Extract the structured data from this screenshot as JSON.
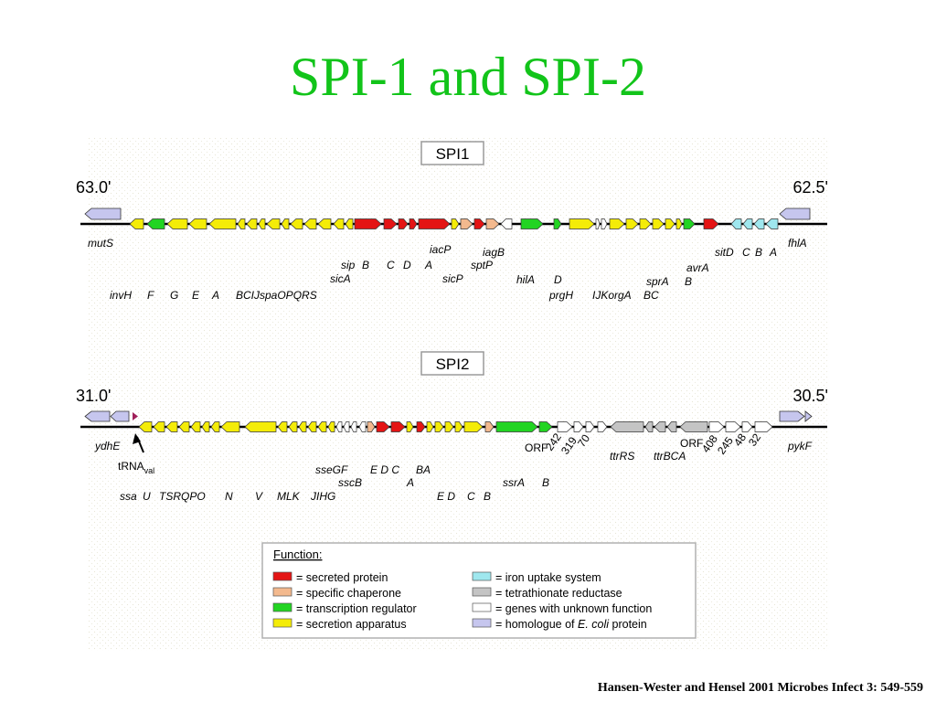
{
  "title": "SPI-1 and SPI-2",
  "citation": "Hansen-Wester and Hensel 2001 Microbes Infect 3: 549-559",
  "colors": {
    "red": "#e41414",
    "peach": "#f3b98e",
    "green": "#22d422",
    "yellow": "#f4ec08",
    "cyan": "#9fe7ee",
    "gray": "#c4c4c4",
    "white": "#ffffff",
    "lilac": "#c6c6ee"
  },
  "spi1": {
    "label": "SPI1",
    "left_pos": "63.0'",
    "right_pos": "62.5'",
    "left_gene": "mutS",
    "right_gene": "fhlA",
    "labels": {
      "inv_row": [
        "invH",
        "F",
        "G",
        "E",
        "A",
        "BCIJspaOPQRS"
      ],
      "sip_row": [
        "sip",
        "B",
        "C",
        "D",
        "A"
      ],
      "sicA": "sicA",
      "iacP": "iacP",
      "sptP": "sptP",
      "sicP": "sicP",
      "iagB": "iagB",
      "hilA": "hilA",
      "D": "D",
      "prgH": "prgH",
      "IJKorgA": "IJKorgA",
      "BC": "BC",
      "sprA": "sprA",
      "B2": "B",
      "avrA": "avrA",
      "sit_row": [
        "sitD",
        "C",
        "B",
        "A"
      ]
    }
  },
  "spi2": {
    "label": "SPI2",
    "left_pos": "31.0'",
    "right_pos": "30.5'",
    "left_gene": "ydhE",
    "right_gene": "pykF",
    "trna": "tRNA",
    "trna_sub": "val",
    "labels": {
      "ssa_row": [
        "ssa",
        "U",
        "TSRQPO",
        "N",
        "V",
        "MLK",
        "JIHG"
      ],
      "sseGF": "sseGF",
      "EDC": "E D C",
      "BA": "BA",
      "sscB": "sscB",
      "A": "A",
      "EDCB": [
        "E D",
        "C",
        "B"
      ],
      "ssrA": "ssrA",
      "B": "B",
      "orf1": "ORF",
      "orf1_nums": [
        "242",
        "319",
        "70"
      ],
      "ttrRS": "ttrRS",
      "ttrBCA": "ttrBCA",
      "orf2": "ORF",
      "orf2_nums": [
        "408",
        "245",
        "48",
        "32"
      ]
    }
  },
  "legend": {
    "title": "Function:",
    "items": [
      {
        "color": "#e41414",
        "text": "= secreted protein"
      },
      {
        "color": "#f3b98e",
        "text": "= specific chaperone"
      },
      {
        "color": "#22d422",
        "text": "= transcription regulator"
      },
      {
        "color": "#f4ec08",
        "text": "= secretion apparatus"
      },
      {
        "color": "#9fe7ee",
        "text": "= iron uptake system"
      },
      {
        "color": "#c4c4c4",
        "text": "= tetrathionate reductase"
      },
      {
        "color": "#ffffff",
        "text": "= genes with unknown function"
      },
      {
        "color": "#c6c6ee",
        "text": "= homologue of ",
        "italic": "E. coli",
        "suffix": " protein"
      }
    ]
  }
}
